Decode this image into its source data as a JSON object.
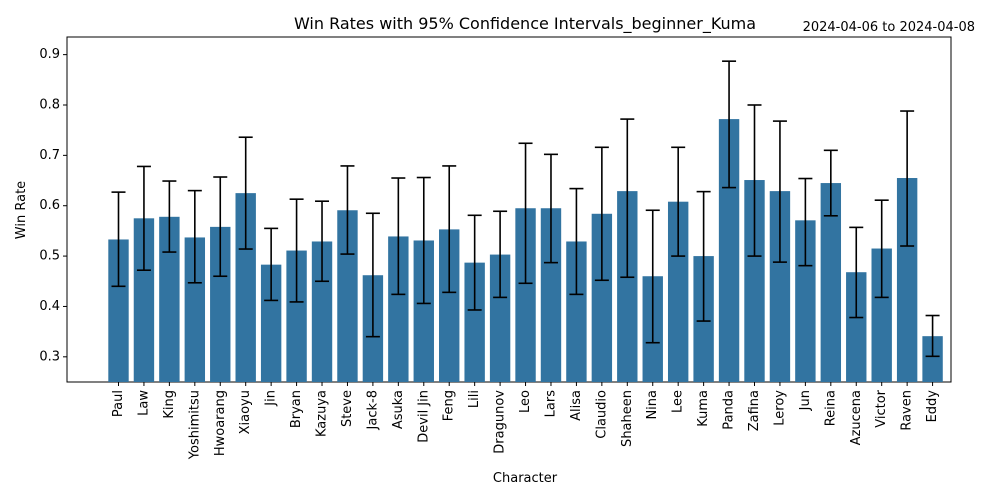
{
  "chart_data": {
    "type": "bar",
    "title": "Win Rates with 95% Confidence Intervals_beginner_Kuma",
    "date_range": "2024-04-06 to 2024-04-08",
    "xlabel": "Character",
    "ylabel": "Win Rate",
    "ylim": [
      0.25,
      0.935
    ],
    "yticks": [
      "0.3",
      "0.4",
      "0.5",
      "0.6",
      "0.7",
      "0.8",
      "0.9"
    ],
    "bar_color": "#3274a1",
    "error_color": "#000000",
    "categories": [
      "Paul",
      "Law",
      "King",
      "Yoshimitsu",
      "Hwoarang",
      "Xiaoyu",
      "Jin",
      "Bryan",
      "Kazuya",
      "Steve",
      "Jack-8",
      "Asuka",
      "Devil Jin",
      "Feng",
      "Lili",
      "Dragunov",
      "Leo",
      "Lars",
      "Alisa",
      "Claudio",
      "Shaheen",
      "Nina",
      "Lee",
      "Kuma",
      "Panda",
      "Zafina",
      "Leroy",
      "Jun",
      "Reina",
      "Azucena",
      "Victor",
      "Raven",
      "Eddy"
    ],
    "values": [
      0.533,
      0.575,
      0.578,
      0.537,
      0.558,
      0.625,
      0.483,
      0.511,
      0.529,
      0.591,
      0.462,
      0.539,
      0.531,
      0.553,
      0.487,
      0.503,
      0.595,
      0.595,
      0.529,
      0.584,
      0.629,
      0.46,
      0.608,
      0.5,
      0.772,
      0.651,
      0.629,
      0.571,
      0.645,
      0.468,
      0.515,
      0.655,
      0.341
    ],
    "ci_lower": [
      0.44,
      0.472,
      0.508,
      0.447,
      0.46,
      0.514,
      0.412,
      0.409,
      0.45,
      0.504,
      0.34,
      0.424,
      0.406,
      0.428,
      0.393,
      0.418,
      0.446,
      0.487,
      0.424,
      0.452,
      0.458,
      0.328,
      0.5,
      0.371,
      0.636,
      0.5,
      0.488,
      0.481,
      0.58,
      0.378,
      0.418,
      0.52,
      0.301
    ],
    "ci_upper": [
      0.627,
      0.678,
      0.649,
      0.63,
      0.657,
      0.736,
      0.555,
      0.613,
      0.609,
      0.679,
      0.585,
      0.655,
      0.656,
      0.679,
      0.581,
      0.589,
      0.724,
      0.702,
      0.634,
      0.716,
      0.772,
      0.591,
      0.716,
      0.628,
      0.887,
      0.8,
      0.768,
      0.654,
      0.71,
      0.557,
      0.611,
      0.788,
      0.382
    ],
    "grid": false,
    "legend": "none"
  }
}
